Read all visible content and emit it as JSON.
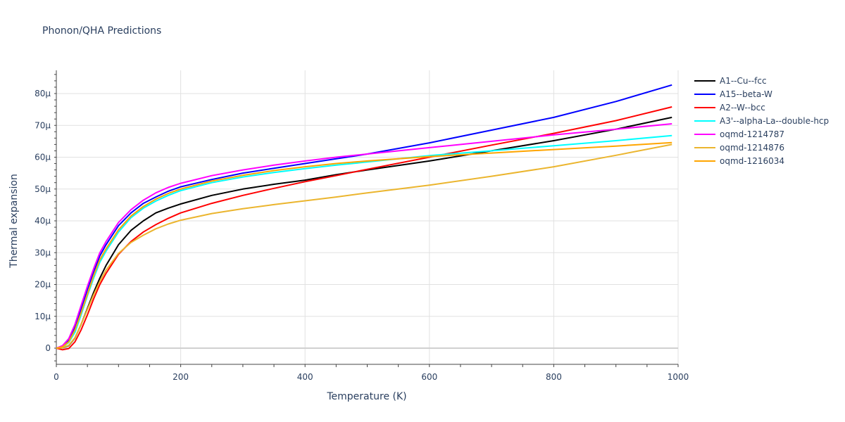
{
  "chart_data": {
    "type": "line",
    "title": "Phonon/QHA Predictions",
    "xlabel": "Temperature (K)",
    "ylabel": "Thermal expansion",
    "xlim": [
      0,
      1000
    ],
    "ylim": [
      -5,
      87
    ],
    "x_ticks": [
      "0",
      "200",
      "400",
      "600",
      "800",
      "1000"
    ],
    "y_ticks": [
      "0",
      "10µ",
      "20µ",
      "30µ",
      "40µ",
      "50µ",
      "60µ",
      "70µ",
      "80µ"
    ],
    "grid": true,
    "legend_position": "right",
    "x": [
      0,
      10,
      20,
      30,
      40,
      50,
      60,
      70,
      80,
      100,
      120,
      140,
      160,
      180,
      200,
      250,
      300,
      350,
      400,
      450,
      500,
      600,
      700,
      800,
      900,
      990
    ],
    "series": [
      {
        "name": "A1--Cu--fcc",
        "color": "#000000",
        "values": [
          0,
          0.1,
          0.8,
          3.2,
          7.5,
          12.5,
          17.5,
          22,
          26,
          32.5,
          37,
          40,
          42.5,
          44,
          45.3,
          48,
          50,
          51.5,
          52.8,
          54.5,
          56,
          58.8,
          62,
          65.2,
          68.8,
          72.5
        ]
      },
      {
        "name": "A15--beta-W",
        "color": "#0000ff",
        "values": [
          0,
          0.6,
          2.5,
          6.5,
          12.5,
          18.5,
          24,
          29,
          32.5,
          38.5,
          42.5,
          45.5,
          47.5,
          49.3,
          50.7,
          53,
          55,
          56.5,
          58,
          59.5,
          61,
          64.5,
          68.5,
          72.5,
          77.5,
          82.7
        ]
      },
      {
        "name": "A2--W--bcc",
        "color": "#ff0000",
        "values": [
          0,
          -0.5,
          -0.1,
          2,
          5.8,
          10.5,
          15.5,
          20,
          23.5,
          29.5,
          33.5,
          36.5,
          38.8,
          40.8,
          42.5,
          45.5,
          48,
          50.2,
          52.3,
          54.2,
          56.2,
          60,
          63.8,
          67.5,
          71.5,
          75.8
        ]
      },
      {
        "name": "A3'--alpha-La--double-hcp",
        "color": "#00ffff",
        "values": [
          0,
          0.3,
          1.8,
          5,
          10.5,
          16.5,
          22,
          27,
          30.5,
          36.5,
          41,
          44,
          46.2,
          48,
          49.5,
          52,
          53.8,
          55.2,
          56.4,
          57.5,
          58.5,
          60.5,
          62,
          63.6,
          65.2,
          66.8
        ]
      },
      {
        "name": "oqmd-1214787",
        "color": "#ff00ff",
        "values": [
          0,
          0.8,
          3,
          7.5,
          13.5,
          19.5,
          25,
          30,
          33.5,
          39.5,
          43.5,
          46.5,
          48.8,
          50.5,
          51.8,
          54.2,
          56,
          57.5,
          58.8,
          60,
          61,
          63,
          65,
          67,
          68.8,
          70.5
        ]
      },
      {
        "name": "oqmd-1214876",
        "color": "#ebb52e",
        "values": [
          0,
          0.1,
          0.9,
          3.3,
          7.5,
          12.2,
          16.8,
          21,
          24.5,
          29.8,
          33.2,
          35.5,
          37.5,
          39,
          40.2,
          42.3,
          43.8,
          45.1,
          46.3,
          47.5,
          48.8,
          51.2,
          54,
          57,
          60.6,
          64
        ]
      },
      {
        "name": "oqmd-1216034",
        "color": "#ffa500",
        "values": [
          0,
          0.4,
          2,
          5.8,
          11.2,
          17,
          22.8,
          27.8,
          31.2,
          37.2,
          41.5,
          44.5,
          46.8,
          48.6,
          50,
          52.5,
          54.3,
          55.8,
          57,
          58,
          58.8,
          60.2,
          61.3,
          62.4,
          63.5,
          64.6
        ]
      }
    ]
  }
}
